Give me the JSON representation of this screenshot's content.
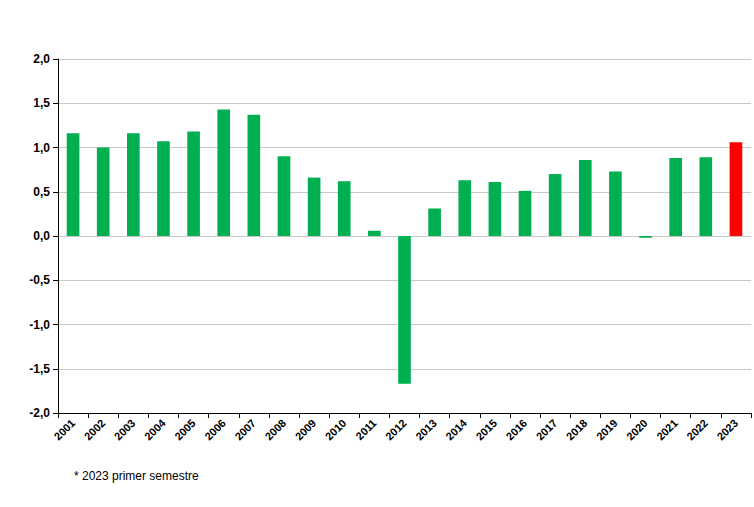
{
  "chart_data": {
    "type": "bar",
    "categories": [
      "2001",
      "2002",
      "2003",
      "2004",
      "2005",
      "2006",
      "2007",
      "2008",
      "2009",
      "2010",
      "2011",
      "2012",
      "2013",
      "2014",
      "2015",
      "2016",
      "2017",
      "2018",
      "2019",
      "2020",
      "2021",
      "2022",
      "2023"
    ],
    "values": [
      1.16,
      1.0,
      1.16,
      1.07,
      1.18,
      1.43,
      1.37,
      0.9,
      0.66,
      0.62,
      0.06,
      -1.67,
      0.31,
      0.63,
      0.61,
      0.51,
      0.7,
      0.86,
      0.73,
      -0.02,
      0.88,
      0.89,
      1.06
    ],
    "colors": [
      "#00b050",
      "#00b050",
      "#00b050",
      "#00b050",
      "#00b050",
      "#00b050",
      "#00b050",
      "#00b050",
      "#00b050",
      "#00b050",
      "#00b050",
      "#00b050",
      "#00b050",
      "#00b050",
      "#00b050",
      "#00b050",
      "#00b050",
      "#00b050",
      "#00b050",
      "#00b050",
      "#00b050",
      "#00b050",
      "#ff0000"
    ],
    "ylim": [
      -2.0,
      2.0
    ],
    "yticks": [
      {
        "value": -2.0,
        "label": "-2,0"
      },
      {
        "value": -1.5,
        "label": "-1,5"
      },
      {
        "value": -1.0,
        "label": "-1,0"
      },
      {
        "value": -0.5,
        "label": "-0,5"
      },
      {
        "value": 0.0,
        "label": "0,0"
      },
      {
        "value": 0.5,
        "label": "0,5"
      },
      {
        "value": 1.0,
        "label": "1,0"
      },
      {
        "value": 1.5,
        "label": "1,5"
      },
      {
        "value": 2.0,
        "label": "2,0"
      }
    ],
    "grid": true,
    "annotations": [
      "* 2023 primer semestre"
    ]
  }
}
